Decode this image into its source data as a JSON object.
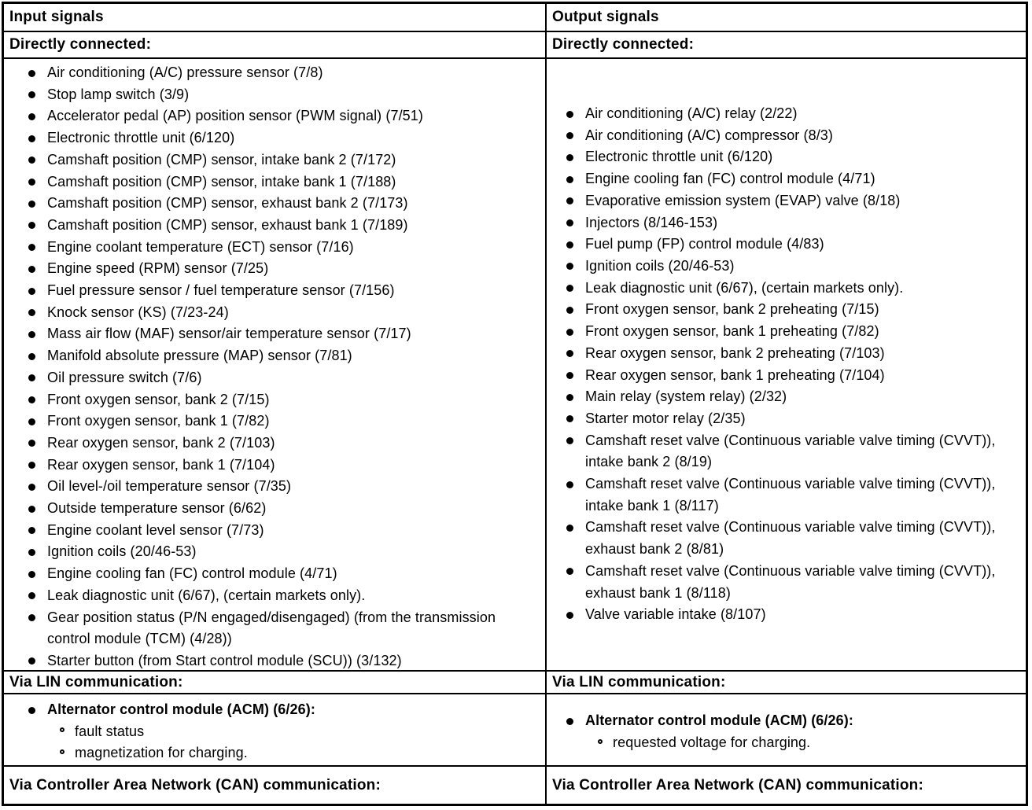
{
  "columns": [
    {
      "id": "input",
      "header": "Input signals",
      "directly_connected_label": "Directly connected:",
      "directly_connected_items": [
        "Air conditioning (A/C) pressure sensor (7/8)",
        "Stop lamp switch (3/9)",
        "Accelerator pedal (AP) position sensor (PWM signal) (7/51)",
        "Electronic throttle unit (6/120)",
        "Camshaft position (CMP) sensor, intake bank 2 (7/172)",
        "Camshaft position (CMP) sensor, intake bank 1 (7/188)",
        "Camshaft position (CMP) sensor, exhaust bank 2 (7/173)",
        "Camshaft position (CMP) sensor, exhaust bank 1 (7/189)",
        "Engine coolant temperature (ECT) sensor (7/16)",
        "Engine speed (RPM) sensor (7/25)",
        "Fuel pressure sensor / fuel temperature sensor (7/156)",
        "Knock sensor (KS) (7/23-24)",
        "Mass air flow (MAF) sensor/air temperature sensor (7/17)",
        "Manifold absolute pressure (MAP) sensor (7/81)",
        "Oil pressure switch (7/6)",
        "Front oxygen sensor, bank 2 (7/15)",
        "Front oxygen sensor, bank 1 (7/82)",
        "Rear oxygen sensor, bank 2 (7/103)",
        "Rear oxygen sensor, bank 1 (7/104)",
        "Oil level-/oil temperature sensor (7/35)",
        "Outside temperature sensor (6/62)",
        "Engine coolant level sensor (7/73)",
        "Ignition coils (20/46-53)",
        "Engine cooling fan (FC) control module (4/71)",
        "Leak diagnostic unit (6/67), (certain markets only).",
        "Gear position status (P/N engaged/disengaged) (from the transmission control module (TCM) (4/28))",
        "Starter button (from Start control module (SCU)) (3/132)"
      ],
      "lin_label": "Via LIN communication:",
      "lin_groups": [
        {
          "title": "Alternator control module (ACM) (6/26):",
          "sub_items": [
            "fault status",
            "magnetization for charging."
          ]
        }
      ],
      "can_label": "Via Controller Area Network (CAN) communication:"
    },
    {
      "id": "output",
      "header": "Output signals",
      "directly_connected_label": "Directly connected:",
      "directly_connected_items": [
        "Air conditioning (A/C) relay (2/22)",
        "Air conditioning (A/C) compressor (8/3)",
        "Electronic throttle unit (6/120)",
        "Engine cooling fan (FC) control module (4/71)",
        "Evaporative emission system (EVAP) valve (8/18)",
        "Injectors (8/146-153)",
        "Fuel pump (FP) control module (4/83)",
        "Ignition coils (20/46-53)",
        "Leak diagnostic unit (6/67), (certain markets only).",
        "Front oxygen sensor, bank 2 preheating (7/15)",
        "Front oxygen sensor, bank 1 preheating (7/82)",
        "Rear oxygen sensor, bank 2 preheating (7/103)",
        "Rear oxygen sensor, bank 1 preheating (7/104)",
        "Main relay (system relay) (2/32)",
        "Starter motor relay (2/35)",
        "Camshaft reset valve (Continuous variable valve timing (CVVT)), intake bank 2 (8/19)",
        "Camshaft reset valve (Continuous variable valve timing (CVVT)), intake bank 1 (8/117)",
        "Camshaft reset valve (Continuous variable valve timing (CVVT)), exhaust bank 2 (8/81)",
        "Camshaft reset valve (Continuous variable valve timing (CVVT)), exhaust bank 1 (8/118)",
        "Valve variable intake (8/107)"
      ],
      "lin_label": "Via LIN communication:",
      "lin_groups": [
        {
          "title": "Alternator control module (ACM) (6/26):",
          "sub_items": [
            "requested voltage for charging."
          ]
        }
      ],
      "can_label": "Via Controller Area Network (CAN) communication:"
    }
  ]
}
